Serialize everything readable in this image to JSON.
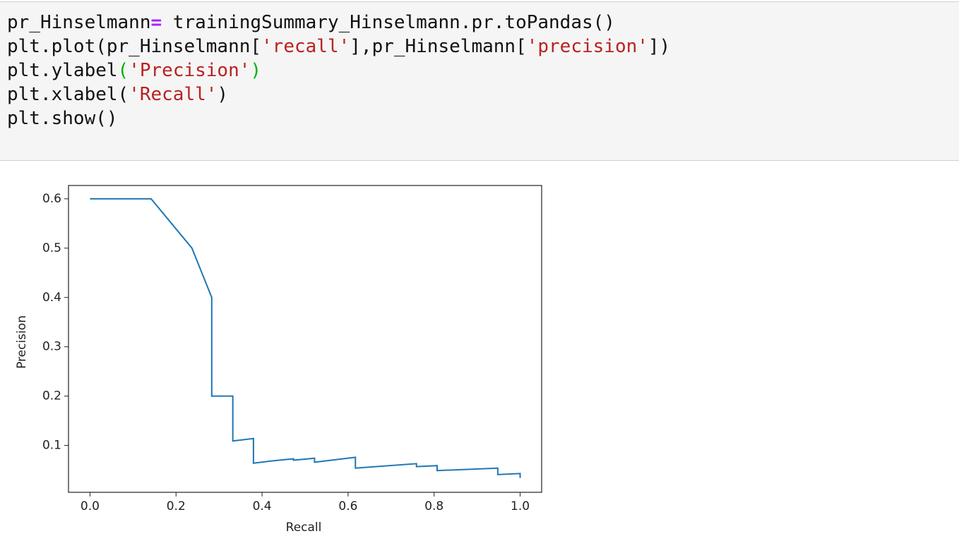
{
  "code": {
    "lines": [
      [
        "pr_Hinselmann",
        "=",
        " trainingSummary_Hinselmann.pr.toPandas()"
      ],
      [
        "plt.plot(pr_Hinselmann[",
        "'recall'",
        "],pr_Hinselmann[",
        "'precision'",
        "])"
      ],
      [
        "plt.ylabel",
        "(",
        "'Precision'",
        ")"
      ],
      [
        "plt.xlabel(",
        "'Recall'",
        ")"
      ],
      [
        "plt.show()"
      ]
    ]
  },
  "chart_data": {
    "type": "line",
    "xlabel": "Recall",
    "ylabel": "Precision",
    "color": "#1f77b4",
    "x": [
      0,
      0.142,
      0.237,
      0.283,
      0.283,
      0.332,
      0.332,
      0.38,
      0.38,
      0.427,
      0.473,
      0.473,
      0.522,
      0.522,
      0.617,
      0.617,
      0.759,
      0.759,
      0.807,
      0.807,
      0.948,
      0.948,
      1.0,
      1.0
    ],
    "values": [
      0.6,
      0.6,
      0.5,
      0.4,
      0.2,
      0.2,
      0.109,
      0.114,
      0.064,
      0.069,
      0.073,
      0.07,
      0.074,
      0.066,
      0.076,
      0.054,
      0.063,
      0.057,
      0.059,
      0.049,
      0.054,
      0.041,
      0.043,
      0.034
    ],
    "xlim": [
      -0.05,
      1.05
    ],
    "ylim": [
      0.005,
      0.627
    ],
    "xticks": [
      {
        "value": 0,
        "label": "0.0"
      },
      0.2,
      0.4,
      0.6,
      0.8,
      {
        "value": 1,
        "label": "1.0"
      }
    ],
    "yticks": [
      0.1,
      0.2,
      0.3,
      0.4,
      0.5,
      0.6
    ]
  }
}
